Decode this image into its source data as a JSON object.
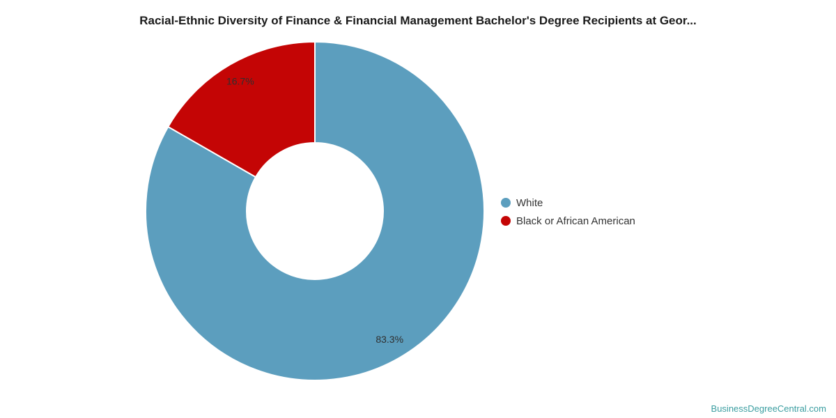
{
  "title": "Racial-Ethnic Diversity of Finance & Financial Management Bachelor's Degree Recipients at Geor...",
  "chart_data": {
    "type": "pie",
    "subtype": "donut",
    "title": "Racial-Ethnic Diversity of Finance & Financial Management Bachelor's Degree Recipients at Geor...",
    "slices": [
      {
        "label": "White",
        "value": 83.3,
        "display": "83.3%",
        "color": "#5c9ebe"
      },
      {
        "label": "Black or African American",
        "value": 16.7,
        "display": "16.7%",
        "color": "#c40505"
      }
    ],
    "start_angle_deg": 0,
    "direction": "clockwise",
    "inner_radius_ratio": 0.405,
    "legend_position": "right",
    "data_label_color": "#2f2f2f"
  },
  "legend": {
    "items": [
      {
        "label": "White",
        "color": "#5c9ebe"
      },
      {
        "label": "Black or African American",
        "color": "#c40505"
      }
    ]
  },
  "footer": {
    "link_text": "BusinessDegreeCentral.com",
    "link_color": "#3b9ea1"
  }
}
